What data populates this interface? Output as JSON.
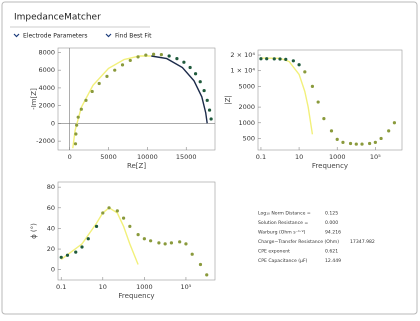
{
  "ui": {
    "title": "ImpedanceMatcher",
    "buttons": [
      "Electrode Parameters",
      "Find Best Fit"
    ]
  },
  "params": [
    {
      "label": "Log₁₀ Norm Distance =",
      "value": "0.125",
      "color": "#c0392b"
    },
    {
      "label": "Solution Resistance =",
      "value": "0.000",
      "color": "#3a9a2a"
    },
    {
      "label": "Warburg (Ohm s⁻¹ᐟ²)",
      "value": "94.216",
      "color": "#3a9a2a"
    },
    {
      "label": "Charge−Transfer Resistance (Ohm)",
      "value": "17347.982",
      "color": "#3a9a2a"
    },
    {
      "label": "CPE exponent",
      "value": "0.621",
      "color": "#3a9a2a"
    },
    {
      "label": "CPE Capacitance (μF)",
      "value": "12.449",
      "color": "#3a9a2a"
    }
  ],
  "chart_data": [
    {
      "type": "scatter",
      "xlabel": "Re[Z]",
      "ylabel": "-Im[Z]",
      "xlog": false,
      "ylog": false,
      "zero_line": true,
      "xlim": [
        -1500,
        18700
      ],
      "ylim": [
        -3000,
        8500
      ],
      "xticks": [
        0,
        5000,
        10000,
        15000
      ],
      "yticks": [
        -2000,
        0,
        2000,
        4000,
        6000,
        8000
      ],
      "series": [
        {
          "type": "line",
          "color": "#f2f07a",
          "x": [
            400,
            700,
            1500,
            3000,
            5000,
            7000,
            9000,
            10500
          ],
          "values": [
            -2800,
            -800,
            1800,
            4300,
            6200,
            7200,
            7600,
            7600
          ]
        },
        {
          "type": "line",
          "color": "#1c2b4a",
          "x": [
            10500,
            12500,
            14500,
            16000,
            17000,
            17500,
            17700
          ],
          "values": [
            7600,
            7300,
            6300,
            4800,
            3000,
            1200,
            0
          ]
        },
        {
          "type": "scatter",
          "color": "#1f5a3c",
          "x": [
            18200,
            18000,
            17700,
            17300,
            16800,
            16200,
            15500,
            14700,
            13800,
            12800
          ],
          "values": [
            500,
            1500,
            2600,
            3700,
            4700,
            5600,
            6300,
            6900,
            7300,
            7600
          ]
        },
        {
          "type": "scatter",
          "color": "#8a9a3c",
          "x": [
            11800,
            10800,
            9800,
            8800,
            7800,
            6800,
            5800,
            4800,
            3800,
            2900,
            2100,
            1500,
            1100,
            900,
            800,
            750
          ],
          "values": [
            7750,
            7800,
            7700,
            7500,
            7100,
            6600,
            6000,
            5300,
            4500,
            3600,
            2600,
            1600,
            700,
            -200,
            -1200,
            -2300
          ]
        }
      ]
    },
    {
      "type": "scatter",
      "xlabel": "Frequency",
      "ylabel": "|Z|",
      "xlog": true,
      "ylog": true,
      "zero_line": false,
      "xlim": [
        0.07,
        2500000
      ],
      "ylim": [
        300,
        25000
      ],
      "xticks": [
        0.1,
        10,
        1000,
        {
          "value": 100000,
          "label": "10⁵"
        }
      ],
      "yticks": [
        500,
        1000,
        2000,
        5000,
        {
          "value": 10000,
          "label": "1 × 10⁴"
        },
        {
          "value": 20000,
          "label": "2 × 10⁴"
        }
      ],
      "series": [
        {
          "type": "line",
          "color": "#f2f07a",
          "x": [
            0.1,
            1,
            3,
            10,
            20,
            30,
            50
          ],
          "values": [
            17500,
            17300,
            15000,
            8500,
            4000,
            2000,
            600
          ]
        },
        {
          "type": "scatter",
          "color": "#1f5a3c",
          "x": [
            0.1,
            0.2,
            0.5,
            1,
            2,
            5,
            10
          ],
          "values": [
            17000,
            17000,
            16900,
            16800,
            16500,
            15500,
            13000
          ]
        },
        {
          "type": "scatter",
          "color": "#8a9a3c",
          "x": [
            20,
            50,
            100,
            200,
            500,
            1000,
            2000,
            5000,
            10000,
            20000,
            50000,
            100000,
            200000,
            500000,
            1000000
          ],
          "values": [
            9500,
            5000,
            2500,
            1200,
            700,
            480,
            420,
            400,
            390,
            390,
            400,
            420,
            500,
            700,
            1000
          ]
        }
      ]
    },
    {
      "type": "scatter",
      "xlabel": "Frequency",
      "ylabel": "ϕ (°)",
      "xlog": true,
      "ylog": false,
      "zero_line": false,
      "xlim": [
        0.07,
        2500000
      ],
      "ylim": [
        -10,
        85
      ],
      "xticks": [
        0.1,
        10,
        1000,
        {
          "value": 100000,
          "label": "10⁵"
        }
      ],
      "yticks": [
        0,
        20,
        40,
        60,
        80
      ],
      "series": [
        {
          "type": "line",
          "color": "#f2f07a",
          "x": [
            0.1,
            1,
            5,
            10,
            20,
            50,
            100,
            200,
            500
          ],
          "values": [
            10,
            25,
            45,
            55,
            60,
            55,
            42,
            25,
            5
          ]
        },
        {
          "type": "scatter",
          "color": "#1f5a3c",
          "x": [
            0.1,
            0.2,
            0.5,
            1,
            2,
            5
          ],
          "values": [
            12,
            14,
            17,
            22,
            30,
            42
          ]
        },
        {
          "type": "scatter",
          "color": "#8a9a3c",
          "x": [
            10,
            20,
            50,
            100,
            200,
            500,
            1000,
            2000,
            5000,
            10000,
            20000,
            50000,
            100000,
            200000,
            500000,
            1000000
          ],
          "values": [
            55,
            60,
            57,
            50,
            42,
            34,
            30,
            28,
            26,
            25,
            26,
            27,
            25,
            15,
            5,
            -5
          ]
        }
      ]
    }
  ]
}
